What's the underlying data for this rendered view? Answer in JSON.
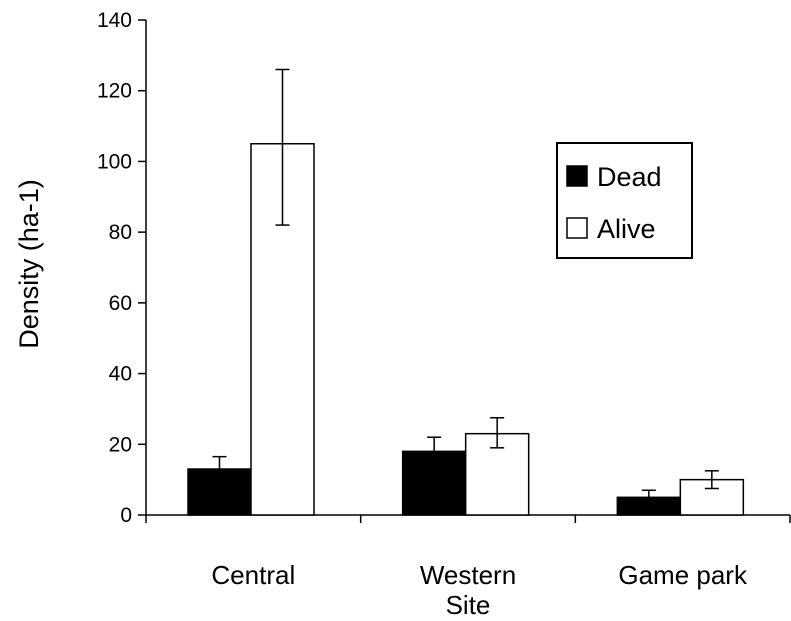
{
  "chart_data": {
    "type": "bar",
    "ylabel": "Density (ha-1)",
    "ylim": [
      0,
      140
    ],
    "yticks": [
      0,
      20,
      40,
      60,
      80,
      100,
      120,
      140
    ],
    "categories": [
      [
        "Central"
      ],
      [
        "Western",
        "Site"
      ],
      [
        "Game park"
      ]
    ],
    "series": [
      {
        "name": "Dead",
        "color": "#000000",
        "values": [
          13,
          18,
          5
        ],
        "err_low": [
          10,
          14,
          3
        ],
        "err_high": [
          16.5,
          22,
          7
        ]
      },
      {
        "name": "Alive",
        "color": "#ffffff",
        "values": [
          105,
          23,
          10
        ],
        "err_low": [
          82,
          19,
          7.5
        ],
        "err_high": [
          126,
          27.5,
          12.5
        ]
      }
    ],
    "legend": {
      "position": "top-right"
    },
    "grid": false
  }
}
